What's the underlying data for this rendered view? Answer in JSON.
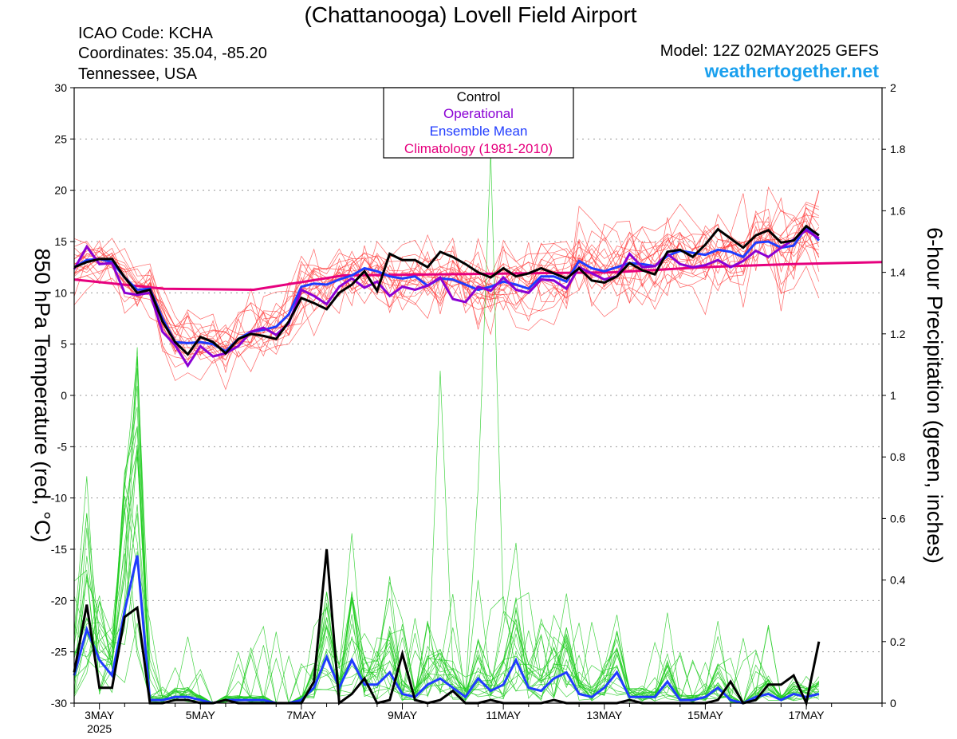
{
  "header": {
    "title": "(Chattanooga) Lovell Field Airport",
    "icao": "ICAO Code: KCHA",
    "coords": "Coordinates: 35.04, -85.20",
    "region": "Tennessee, USA",
    "model": "Model: 12Z 02MAY2025 GEFS",
    "site": "weathertogether.net"
  },
  "legend": [
    {
      "label": "Control",
      "color": "#000000"
    },
    {
      "label": "Operational",
      "color": "#8a00d4"
    },
    {
      "label": "Ensemble Mean",
      "color": "#1f3bff"
    },
    {
      "label": "Climatology (1981-2010)",
      "color": "#e6007e"
    }
  ],
  "axes": {
    "y_left_label": "850 hPa Temperature (red, °C)",
    "y_right_label": "6-hour Precipitation (green, inches)",
    "x_ticks": [
      {
        "t": 0.5,
        "label": "3MAY",
        "sub": "2025"
      },
      {
        "t": 2.5,
        "label": "5MAY"
      },
      {
        "t": 4.5,
        "label": "7MAY"
      },
      {
        "t": 6.5,
        "label": "9MAY"
      },
      {
        "t": 8.5,
        "label": "11MAY"
      },
      {
        "t": 10.5,
        "label": "13MAY"
      },
      {
        "t": 12.5,
        "label": "15MAY"
      },
      {
        "t": 14.5,
        "label": "17MAY"
      }
    ],
    "y_left_ticks": [
      30,
      25,
      20,
      15,
      10,
      5,
      0,
      -5,
      -10,
      -15,
      -20,
      -25,
      -30
    ],
    "y_right_ticks": [
      "2",
      "1.8",
      "1.6",
      "1.4",
      "1.2",
      "1",
      "0.8",
      "0.6",
      "0.4",
      "0.2",
      "0"
    ]
  },
  "chart_data": {
    "type": "line",
    "x_unit": "days after 12Z 02MAY2025 (6-hourly)",
    "xlim": [
      0,
      16
    ],
    "ylim_left": [
      -30,
      30
    ],
    "ylim_right": [
      0,
      2
    ],
    "grid": true,
    "legend_position": "top-center",
    "colors": {
      "members_temp": "#ff3333",
      "members_precip": "#22cc22",
      "control": "#000000",
      "operational": "#8a00d4",
      "mean": "#1f3bff",
      "climatology": "#e6007e"
    },
    "series_temp": {
      "control": [
        12.5,
        13,
        13.3,
        13.3,
        11.5,
        10,
        10.3,
        7.2,
        5.2,
        4,
        5.7,
        5.2,
        4.1,
        5.5,
        6,
        5.8,
        5.5,
        7.2,
        9.5,
        9,
        8.4,
        10,
        10.8,
        12.1,
        10.2,
        13.8,
        13.2,
        13.2,
        12.5,
        14,
        13.5,
        12.8,
        12,
        11.5,
        12.4,
        11.6,
        11.9,
        12.4,
        11.9,
        11.4,
        12.4,
        11.2,
        11,
        11.6,
        12.9,
        12.2,
        11.8,
        14,
        14.2,
        13.5,
        14.7,
        16.2,
        15.3,
        14.4,
        15.6,
        16.1,
        14.9,
        15.1,
        16.5,
        15.6
      ],
      "operational": [
        12.3,
        14.5,
        12.8,
        12.9,
        10,
        9.8,
        10,
        6.2,
        4.9,
        2.9,
        4.8,
        3.8,
        4.1,
        4.8,
        6.2,
        6.6,
        5.9,
        7,
        10.3,
        9.7,
        8.9,
        10.6,
        11.4,
        10.5,
        11.1,
        9.7,
        10.6,
        10.3,
        10.7,
        11.5,
        9.4,
        9.1,
        10.6,
        10.2,
        11.5,
        10.3,
        10,
        11.3,
        11.2,
        10.4,
        12.5,
        11.9,
        11.3,
        11.6,
        13.8,
        12.5,
        12.6,
        13.8,
        12.8,
        12.5,
        12.7,
        13.2,
        12.5,
        13.1,
        14.1,
        13.5,
        14.4,
        15.2,
        16.1,
        15.3
      ],
      "mean": [
        12.5,
        13.2,
        13.3,
        13,
        11.5,
        10.3,
        10.4,
        7.5,
        5.2,
        5.1,
        5.2,
        5,
        4.3,
        5.5,
        6.2,
        6.4,
        6.7,
        7.9,
        10.6,
        10.9,
        10.8,
        11.3,
        11.7,
        12.4,
        12.1,
        11.6,
        11.4,
        11.6,
        10.7,
        11.4,
        11.3,
        10.8,
        10.3,
        10.6,
        11.1,
        10.8,
        10.4,
        11.6,
        11.6,
        11.1,
        13.1,
        12.4,
        12.1,
        12.5,
        12.9,
        12.8,
        12.6,
        13.6,
        14.1,
        13.9,
        13.7,
        14.2,
        14,
        13.5,
        14.9,
        15,
        14.4,
        14.6,
        16.4,
        15.1
      ],
      "climatology": [
        11.3,
        10.4,
        10.3,
        11.7,
        11.8,
        11.9,
        12,
        12.5,
        12.8,
        13
      ]
    },
    "series_precip": {
      "control": [
        0.1,
        0.32,
        0.05,
        0.05,
        0.28,
        0.31,
        0,
        0,
        0.01,
        0.01,
        0,
        0,
        0.01,
        0,
        0,
        0,
        0,
        0,
        0,
        0.07,
        0.5,
        0,
        0.03,
        0.08,
        0,
        0.01,
        0.16,
        0.01,
        0,
        0.01,
        0.04,
        0,
        0,
        0.01,
        0,
        0,
        0,
        0,
        0.01,
        0,
        0,
        0,
        0,
        0,
        0.01,
        0,
        0,
        0,
        0,
        0,
        0,
        0.01,
        0.07,
        0,
        0.01,
        0.06,
        0.06,
        0.09,
        0,
        0.2
      ],
      "mean": [
        0.09,
        0.24,
        0.14,
        0.09,
        0.3,
        0.48,
        0.01,
        0.01,
        0.02,
        0.02,
        0.01,
        0,
        0.01,
        0.01,
        0.01,
        0.01,
        0,
        0,
        0.01,
        0.05,
        0.15,
        0.05,
        0.14,
        0.06,
        0.06,
        0.1,
        0.03,
        0.02,
        0.06,
        0.08,
        0.05,
        0.02,
        0.08,
        0.04,
        0.06,
        0.14,
        0.05,
        0.04,
        0.08,
        0.1,
        0.03,
        0.02,
        0.05,
        0.1,
        0.02,
        0.02,
        0.02,
        0.07,
        0.01,
        0.01,
        0.02,
        0.05,
        0.01,
        0,
        0.02,
        0.03,
        0.01,
        0.03,
        0.02,
        0.03
      ]
    }
  }
}
